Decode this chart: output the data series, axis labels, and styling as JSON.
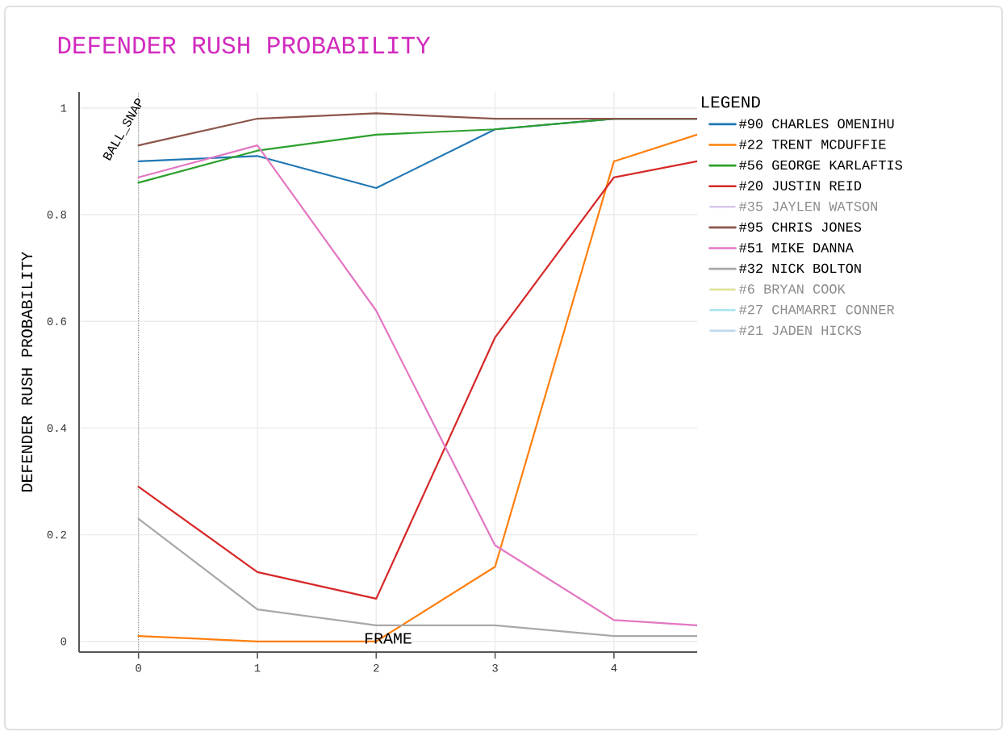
{
  "chart_data": {
    "type": "line",
    "title": "DEFENDER RUSH PROBABILITY",
    "xlabel": "FRAME",
    "ylabel": "DEFENDER RUSH PROBABILITY",
    "legend_title": "LEGEND",
    "x": [
      0,
      1,
      2,
      3,
      4,
      4.7
    ],
    "series": [
      {
        "name": "#90 CHARLES OMENIHU",
        "color": "#1f77b4",
        "values": [
          0.9,
          0.91,
          0.85,
          0.96,
          0.98,
          0.98
        ]
      },
      {
        "name": "#22 TRENT MCDUFFIE",
        "color": "#ff7f0e",
        "values": [
          0.01,
          0.0,
          0.0,
          0.14,
          0.9,
          0.95
        ]
      },
      {
        "name": "#56 GEORGE KARLAFTIS",
        "color": "#2ca02c",
        "values": [
          0.86,
          0.92,
          0.95,
          0.96,
          0.98,
          0.98
        ]
      },
      {
        "name": "#20 JUSTIN REID",
        "color": "#d62728",
        "values": [
          0.29,
          0.13,
          0.08,
          0.57,
          0.87,
          0.9
        ]
      },
      {
        "name": "#35 JAYLEN WATSON",
        "color": "#d8c6ec",
        "values": [
          null,
          null,
          null,
          null,
          null,
          null
        ]
      },
      {
        "name": "#95 CHRIS JONES",
        "color": "#8c564b",
        "values": [
          0.93,
          0.98,
          0.99,
          0.98,
          0.98,
          0.98
        ]
      },
      {
        "name": "#51 MIKE DANNA",
        "color": "#e377c2",
        "values": [
          0.87,
          0.93,
          0.62,
          0.18,
          0.04,
          0.03
        ]
      },
      {
        "name": "#32 NICK BOLTON",
        "color": "#a8a8a8",
        "values": [
          0.23,
          0.06,
          0.03,
          0.03,
          0.01,
          0.01
        ]
      },
      {
        "name": "#6 BRYAN COOK",
        "color": "#e2e29a",
        "values": [
          null,
          null,
          null,
          null,
          null,
          null
        ]
      },
      {
        "name": "#27 CHAMARRI CONNER",
        "color": "#a8e6ef",
        "values": [
          null,
          null,
          null,
          null,
          null,
          null
        ]
      },
      {
        "name": "#21 JADEN HICKS",
        "color": "#bdd7ee",
        "values": [
          null,
          null,
          null,
          null,
          null,
          null
        ]
      }
    ],
    "xlim": [
      -0.5,
      4.7
    ],
    "xticks": [
      0,
      1,
      2,
      3,
      4
    ],
    "ylim": [
      -0.02,
      1.03
    ],
    "yticks": [
      0,
      0.2,
      0.4,
      0.6,
      0.8,
      1
    ],
    "grid": true,
    "legend": "right",
    "ref_lines": [
      {
        "axis": "x",
        "value": 0,
        "label": "BALL_SNAP",
        "line_style": "dotted"
      }
    ]
  }
}
